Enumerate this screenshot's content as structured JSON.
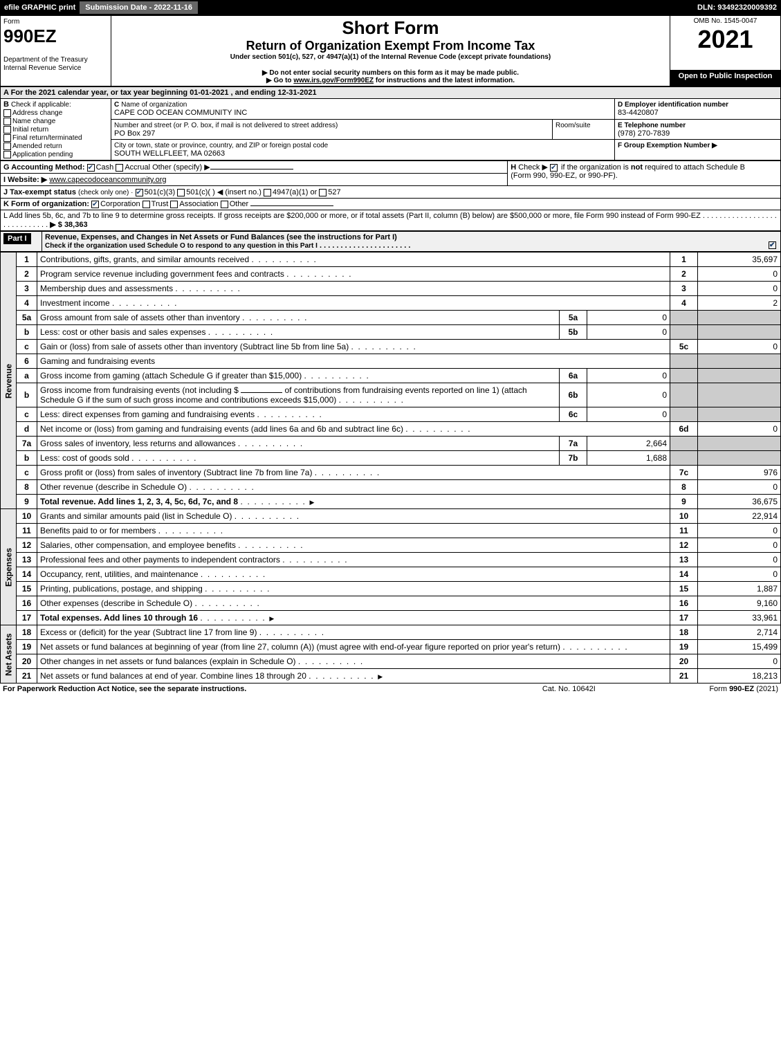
{
  "topbar": {
    "efile": "efile GRAPHIC print",
    "submission": "Submission Date - 2022-11-16",
    "dln": "DLN: 93492320009392"
  },
  "header": {
    "form_word": "Form",
    "form_num": "990EZ",
    "dept": "Department of the Treasury",
    "irs": "Internal Revenue Service",
    "short": "Short Form",
    "title": "Return of Organization Exempt From Income Tax",
    "under": "Under section 501(c), 527, or 4947(a)(1) of the Internal Revenue Code (except private foundations)",
    "note1": "▶ Do not enter social security numbers on this form as it may be made public.",
    "note2_pre": "▶ Go to ",
    "note2_link": "www.irs.gov/Form990EZ",
    "note2_post": " for instructions and the latest information.",
    "omb": "OMB No. 1545-0047",
    "year": "2021",
    "open": "Open to Public Inspection"
  },
  "A": {
    "label": "A  For the 2021 calendar year, or tax year beginning 01-01-2021 , and ending 12-31-2021"
  },
  "B": {
    "label": "B",
    "text": "Check if applicable:",
    "opts": [
      "Address change",
      "Name change",
      "Initial return",
      "Final return/terminated",
      "Amended return",
      "Application pending"
    ]
  },
  "C": {
    "label": "C",
    "name_lbl": "Name of organization",
    "name": "CAPE COD OCEAN COMMUNITY INC",
    "street_lbl": "Number and street (or P. O. box, if mail is not delivered to street address)",
    "room_lbl": "Room/suite",
    "street": "PO Box 297",
    "city_lbl": "City or town, state or province, country, and ZIP or foreign postal code",
    "city": "SOUTH WELLFLEET, MA  02663"
  },
  "D": {
    "label": "D Employer identification number",
    "val": "83-4420807"
  },
  "E": {
    "label": "E Telephone number",
    "val": "(978) 270-7839"
  },
  "F": {
    "label": "F Group Exemption Number   ▶"
  },
  "G": {
    "label": "G Accounting Method:",
    "cash": "Cash",
    "accrual": "Accrual",
    "other": "Other (specify) ▶"
  },
  "H": {
    "label": "H",
    "text1": "Check ▶",
    "text2": "if the organization is ",
    "not": "not",
    "text3": " required to attach Schedule B",
    "text4": "(Form 990, 990-EZ, or 990-PF)."
  },
  "I": {
    "label": "I Website: ▶",
    "val": "www.capecodoceancommunity.org"
  },
  "J": {
    "label": "J Tax-exempt status",
    "small": "(check only one) ·",
    "o1": "501(c)(3)",
    "o2": "501(c)(   ) ◀ (insert no.)",
    "o3": "4947(a)(1) or",
    "o4": "527"
  },
  "K": {
    "label": "K Form of organization:",
    "o1": "Corporation",
    "o2": "Trust",
    "o3": "Association",
    "o4": "Other"
  },
  "L": {
    "text": "L Add lines 5b, 6c, and 7b to line 9 to determine gross receipts. If gross receipts are $200,000 or more, or if total assets (Part II, column (B) below) are $500,000 or more, file Form 990 instead of Form 990-EZ",
    "val": "▶ $ 38,363"
  },
  "part1": {
    "hdr": "Part I",
    "title": "Revenue, Expenses, and Changes in Net Assets or Fund Balances (see the instructions for Part I)",
    "check": "Check if the organization used Schedule O to respond to any question in this Part I"
  },
  "sections": {
    "revenue": "Revenue",
    "expenses": "Expenses",
    "netassets": "Net Assets"
  },
  "lines": {
    "l1": {
      "n": "1",
      "d": "Contributions, gifts, grants, and similar amounts received",
      "box": "1",
      "v": "35,697"
    },
    "l2": {
      "n": "2",
      "d": "Program service revenue including government fees and contracts",
      "box": "2",
      "v": "0"
    },
    "l3": {
      "n": "3",
      "d": "Membership dues and assessments",
      "box": "3",
      "v": "0"
    },
    "l4": {
      "n": "4",
      "d": "Investment income",
      "box": "4",
      "v": "2"
    },
    "l5a": {
      "n": "5a",
      "d": "Gross amount from sale of assets other than inventory",
      "sb": "5a",
      "sv": "0"
    },
    "l5b": {
      "n": "b",
      "d": "Less: cost or other basis and sales expenses",
      "sb": "5b",
      "sv": "0"
    },
    "l5c": {
      "n": "c",
      "d": "Gain or (loss) from sale of assets other than inventory (Subtract line 5b from line 5a)",
      "box": "5c",
      "v": "0"
    },
    "l6": {
      "n": "6",
      "d": "Gaming and fundraising events"
    },
    "l6a": {
      "n": "a",
      "d": "Gross income from gaming (attach Schedule G if greater than $15,000)",
      "sb": "6a",
      "sv": "0"
    },
    "l6b": {
      "n": "b",
      "d1": "Gross income from fundraising events (not including $",
      "d2": "of contributions from fundraising events reported on line 1) (attach Schedule G if the sum of such gross income and contributions exceeds $15,000)",
      "sb": "6b",
      "sv": "0"
    },
    "l6c": {
      "n": "c",
      "d": "Less: direct expenses from gaming and fundraising events",
      "sb": "6c",
      "sv": "0"
    },
    "l6d": {
      "n": "d",
      "d": "Net income or (loss) from gaming and fundraising events (add lines 6a and 6b and subtract line 6c)",
      "box": "6d",
      "v": "0"
    },
    "l7a": {
      "n": "7a",
      "d": "Gross sales of inventory, less returns and allowances",
      "sb": "7a",
      "sv": "2,664"
    },
    "l7b": {
      "n": "b",
      "d": "Less: cost of goods sold",
      "sb": "7b",
      "sv": "1,688"
    },
    "l7c": {
      "n": "c",
      "d": "Gross profit or (loss) from sales of inventory (Subtract line 7b from line 7a)",
      "box": "7c",
      "v": "976"
    },
    "l8": {
      "n": "8",
      "d": "Other revenue (describe in Schedule O)",
      "box": "8",
      "v": "0"
    },
    "l9": {
      "n": "9",
      "d": "Total revenue. Add lines 1, 2, 3, 4, 5c, 6d, 7c, and 8",
      "box": "9",
      "v": "36,675",
      "arrow": true,
      "bold": true
    },
    "l10": {
      "n": "10",
      "d": "Grants and similar amounts paid (list in Schedule O)",
      "box": "10",
      "v": "22,914"
    },
    "l11": {
      "n": "11",
      "d": "Benefits paid to or for members",
      "box": "11",
      "v": "0"
    },
    "l12": {
      "n": "12",
      "d": "Salaries, other compensation, and employee benefits",
      "box": "12",
      "v": "0"
    },
    "l13": {
      "n": "13",
      "d": "Professional fees and other payments to independent contractors",
      "box": "13",
      "v": "0"
    },
    "l14": {
      "n": "14",
      "d": "Occupancy, rent, utilities, and maintenance",
      "box": "14",
      "v": "0"
    },
    "l15": {
      "n": "15",
      "d": "Printing, publications, postage, and shipping",
      "box": "15",
      "v": "1,887"
    },
    "l16": {
      "n": "16",
      "d": "Other expenses (describe in Schedule O)",
      "box": "16",
      "v": "9,160"
    },
    "l17": {
      "n": "17",
      "d": "Total expenses. Add lines 10 through 16",
      "box": "17",
      "v": "33,961",
      "arrow": true,
      "bold": true
    },
    "l18": {
      "n": "18",
      "d": "Excess or (deficit) for the year (Subtract line 17 from line 9)",
      "box": "18",
      "v": "2,714"
    },
    "l19": {
      "n": "19",
      "d": "Net assets or fund balances at beginning of year (from line 27, column (A)) (must agree with end-of-year figure reported on prior year's return)",
      "box": "19",
      "v": "15,499"
    },
    "l20": {
      "n": "20",
      "d": "Other changes in net assets or fund balances (explain in Schedule O)",
      "box": "20",
      "v": "0"
    },
    "l21": {
      "n": "21",
      "d": "Net assets or fund balances at end of year. Combine lines 18 through 20",
      "box": "21",
      "v": "18,213",
      "arrow": true
    }
  },
  "footer": {
    "left": "For Paperwork Reduction Act Notice, see the separate instructions.",
    "mid": "Cat. No. 10642I",
    "right": "Form 990-EZ (2021)"
  }
}
